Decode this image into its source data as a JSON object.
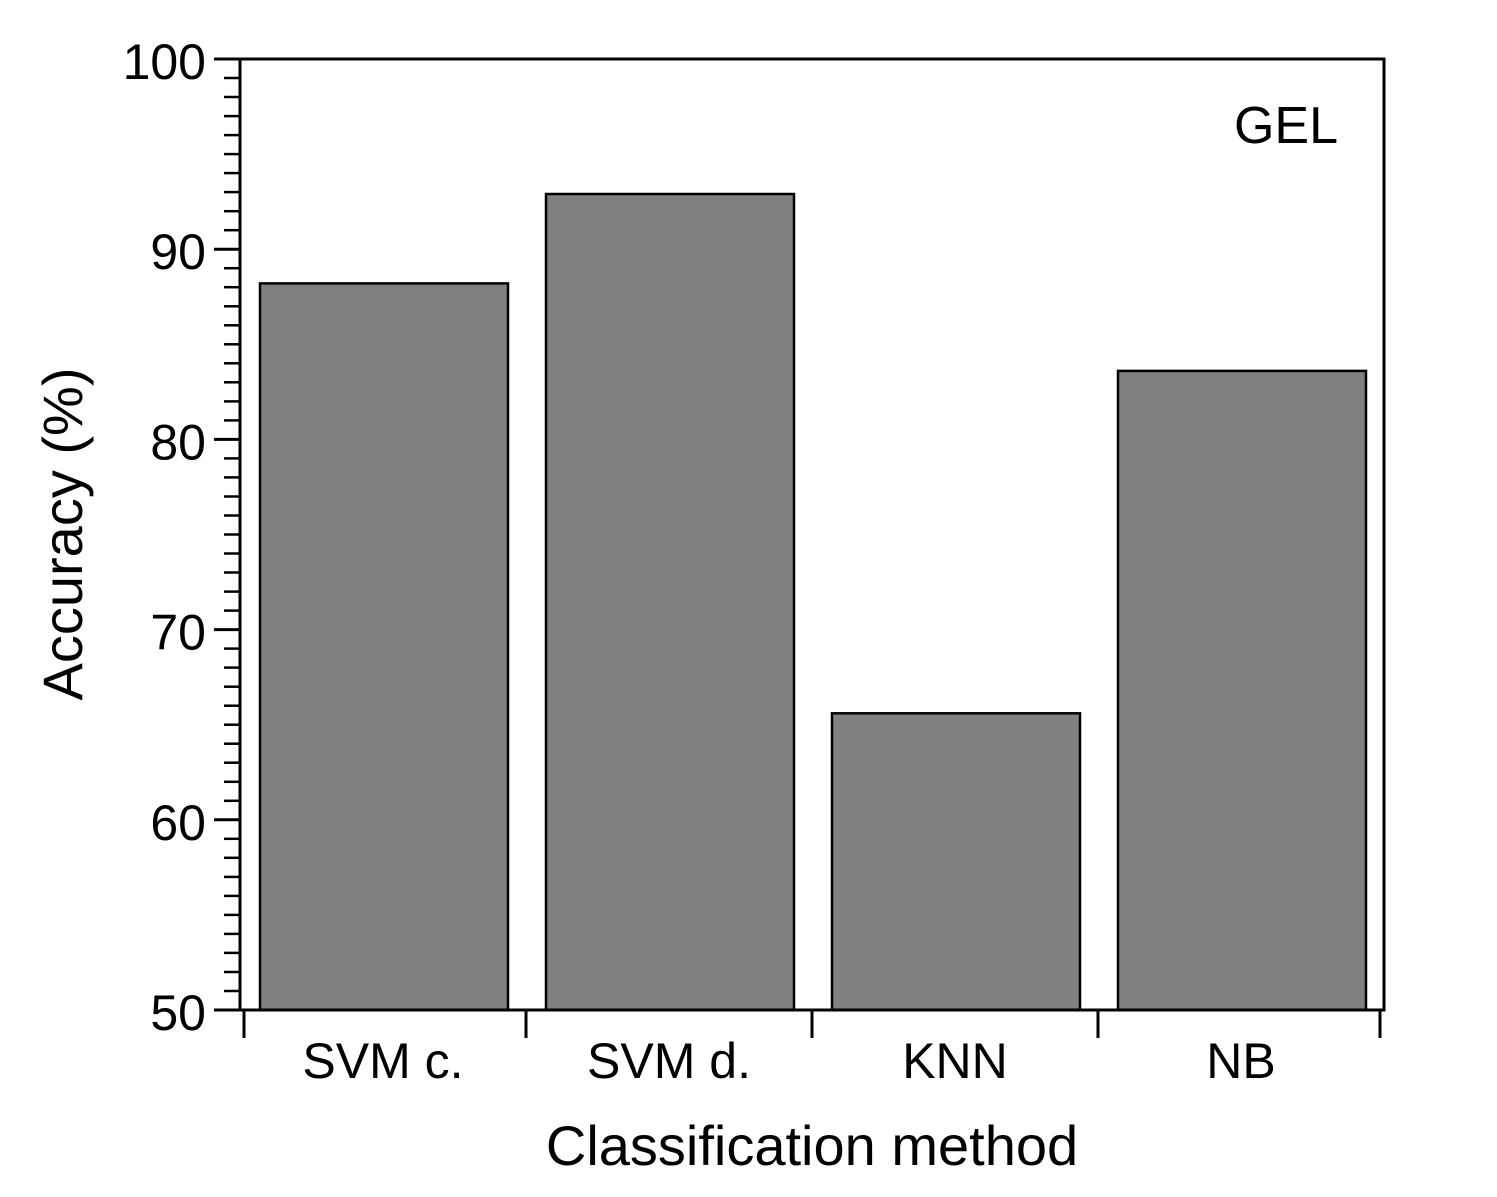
{
  "chart_data": {
    "type": "bar",
    "title": "",
    "annotation": "GEL",
    "xlabel": "Classification method",
    "ylabel": "Accuracy (%)",
    "categories": [
      "SVM c.",
      "SVM d.",
      "KNN",
      "NB"
    ],
    "values": [
      88.2,
      92.9,
      65.6,
      83.6
    ],
    "ylim": [
      50,
      100
    ],
    "yticks": [
      50,
      60,
      70,
      80,
      90,
      100
    ],
    "ytick_labels": [
      "50",
      "60",
      "70",
      "80",
      "90",
      "100"
    ],
    "minor_tick_step": 1,
    "grid": false,
    "legend": "none",
    "colors": {
      "bar_fill": "#808080",
      "bar_stroke": "#000000",
      "axis": "#000000"
    }
  }
}
